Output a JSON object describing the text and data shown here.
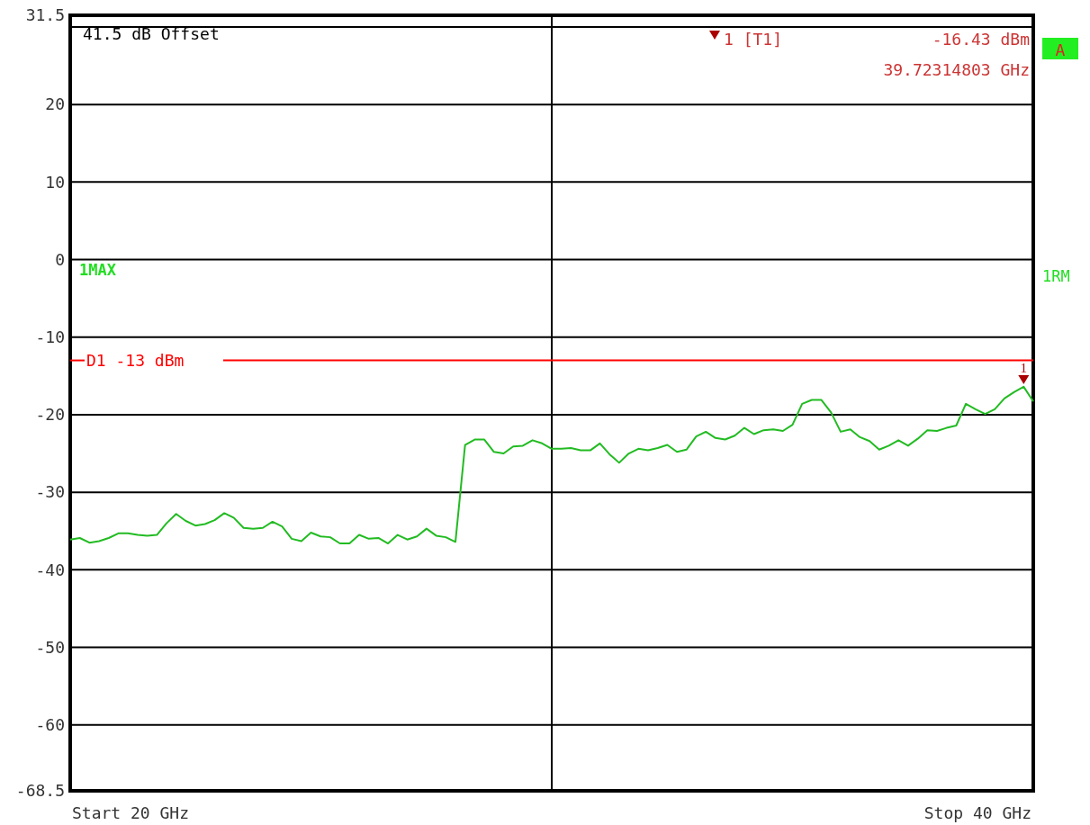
{
  "chart_data": {
    "type": "line",
    "ylim": [
      -68.5,
      31.5
    ],
    "categories": [
      null,
      null,
      null,
      null,
      null,
      null,
      null,
      null,
      null,
      null,
      null,
      null,
      null,
      null,
      null,
      null,
      null,
      null,
      null,
      null,
      null,
      null,
      null,
      null,
      null,
      null,
      null,
      null,
      null,
      null,
      null,
      null,
      null,
      null,
      null,
      null,
      null,
      null,
      null,
      null,
      null,
      null,
      null,
      null,
      null,
      null,
      null,
      null,
      null,
      null,
      null,
      null,
      null,
      null,
      null,
      null,
      null,
      null,
      null,
      null,
      null,
      null,
      null,
      null,
      null,
      null,
      null,
      null,
      null,
      null,
      null,
      null,
      null,
      null,
      null,
      null,
      null,
      null,
      null,
      null,
      null,
      null,
      null,
      null,
      null,
      null,
      null,
      null,
      null,
      null,
      null,
      null,
      null,
      null,
      null,
      null,
      null,
      null,
      null,
      null,
      null
    ],
    "yticks": [
      -68.5,
      -60,
      -50,
      -40,
      -30,
      -20,
      -10,
      0,
      10,
      20,
      {
        "value": 30,
        "label": null
      },
      31.5
    ],
    "grid": "y",
    "marker": "none",
    "line_style": "solid",
    "series": [
      {
        "name": "1MAX",
        "color": "#22bb22",
        "values": [
          -36.1,
          -35.9,
          -36.5,
          -36.3,
          -35.9,
          -35.3,
          -35.3,
          -35.5,
          -35.6,
          -35.5,
          -34.0,
          -32.8,
          -33.7,
          -34.3,
          -34.1,
          -33.6,
          -32.7,
          -33.3,
          -34.6,
          -34.7,
          -34.6,
          -33.8,
          -34.4,
          -36.0,
          -36.3,
          -35.2,
          -35.7,
          -35.8,
          -36.6,
          -36.6,
          -35.5,
          -36.0,
          -35.9,
          -36.6,
          -35.5,
          -36.1,
          -35.7,
          -34.7,
          -35.6,
          -35.8,
          -36.4,
          -23.9,
          -23.2,
          -23.2,
          -24.8,
          -25.0,
          -24.1,
          -24.0,
          -23.3,
          -23.7,
          -24.4,
          -24.4,
          -24.3,
          -24.6,
          -24.6,
          -23.7,
          -25.1,
          -26.2,
          -25.0,
          -24.4,
          -24.6,
          -24.3,
          -23.9,
          -24.8,
          -24.5,
          -22.8,
          -22.2,
          -23.0,
          -23.2,
          -22.7,
          -21.7,
          -22.5,
          -22.0,
          -21.9,
          -22.1,
          -21.3,
          -18.6,
          -18.1,
          -18.1,
          -19.7,
          -22.2,
          -21.9,
          -22.9,
          -23.4,
          -24.5,
          -24.0,
          -23.3,
          -24.0,
          -23.1,
          -22.0,
          -22.1,
          -21.7,
          -21.4,
          -18.6,
          -19.3,
          -19.9,
          -19.3,
          -17.9,
          -17.1,
          -16.4,
          -18.3
        ]
      }
    ],
    "ref_lines": [
      {
        "axis": "y",
        "value": -13,
        "label": "D1 -13 dBm",
        "color": "#ff0000"
      }
    ],
    "annotations": [
      "41.5 dB Offset",
      "1 [T1]",
      "-16.43 dBm",
      "39.72314803 GHz",
      "A",
      "1RM",
      "Start 20 GHz",
      "Stop 40 GHz",
      "1"
    ]
  }
}
